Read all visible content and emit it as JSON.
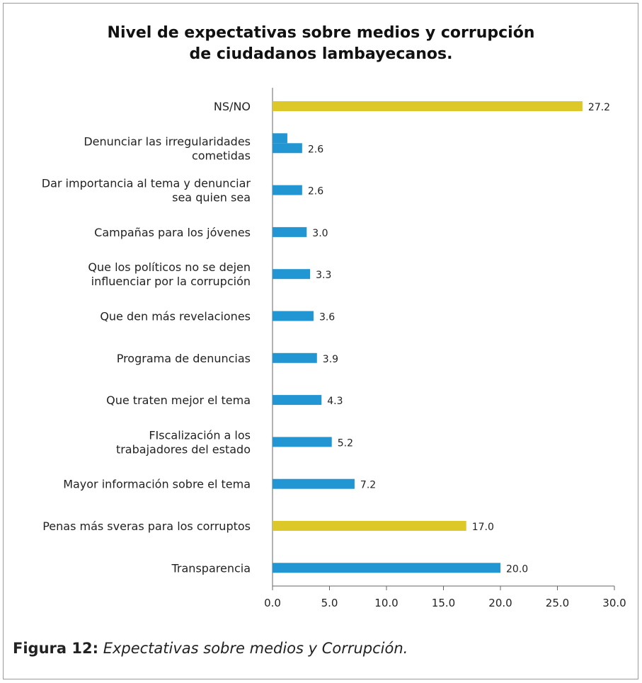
{
  "chart_data": {
    "type": "bar",
    "orientation": "horizontal",
    "title_line1": "Nivel de expectativas sobre medios y corrupción",
    "title_line2": "de ciudadanos lambayecanos.",
    "categories": [
      [
        "NS/NO"
      ],
      [
        "Denunciar las irregularidades",
        "cometidas"
      ],
      [
        "Dar importancia al tema y denunciar",
        "sea quien sea"
      ],
      [
        "Campañas para los jóvenes"
      ],
      [
        "Que los políticos no se dejen",
        "influenciar por la corrupción"
      ],
      [
        "Que den más revelaciones"
      ],
      [
        "Programa de denuncias"
      ],
      [
        "Que traten mejor el tema"
      ],
      [
        "FIscalización a los",
        "trabajadores del estado"
      ],
      [
        "Mayor información sobre el tema"
      ],
      [
        "Penas más sveras para los corruptos"
      ],
      [
        "Transparencia"
      ]
    ],
    "values": [
      27.2,
      2.6,
      2.6,
      3.0,
      3.3,
      3.6,
      3.9,
      4.3,
      5.2,
      7.2,
      17.0,
      20.0
    ],
    "value_labels": [
      "27.2",
      "2.6",
      "2.6",
      "3.0",
      "3.3",
      "3.6",
      "3.9",
      "4.3",
      "5.2",
      "7.2",
      "17.0",
      "20.0"
    ],
    "highlight": [
      true,
      false,
      false,
      false,
      false,
      false,
      false,
      false,
      false,
      false,
      true,
      false
    ],
    "xlim": [
      0,
      30
    ],
    "xticks": [
      0,
      5,
      10,
      15,
      20,
      25,
      30
    ],
    "xtick_labels": [
      "0.0",
      "5.0",
      "10.0",
      "15.0",
      "20.0",
      "25.0",
      "30.0"
    ],
    "colors": {
      "bar": "#2196d3",
      "highlight": "#dcc828",
      "axis": "#666666",
      "text": "#222222"
    },
    "grid": false,
    "legend": "none"
  },
  "caption": {
    "label": "Figura 12:",
    "text": "Expectativas sobre medios y Corrupción."
  }
}
